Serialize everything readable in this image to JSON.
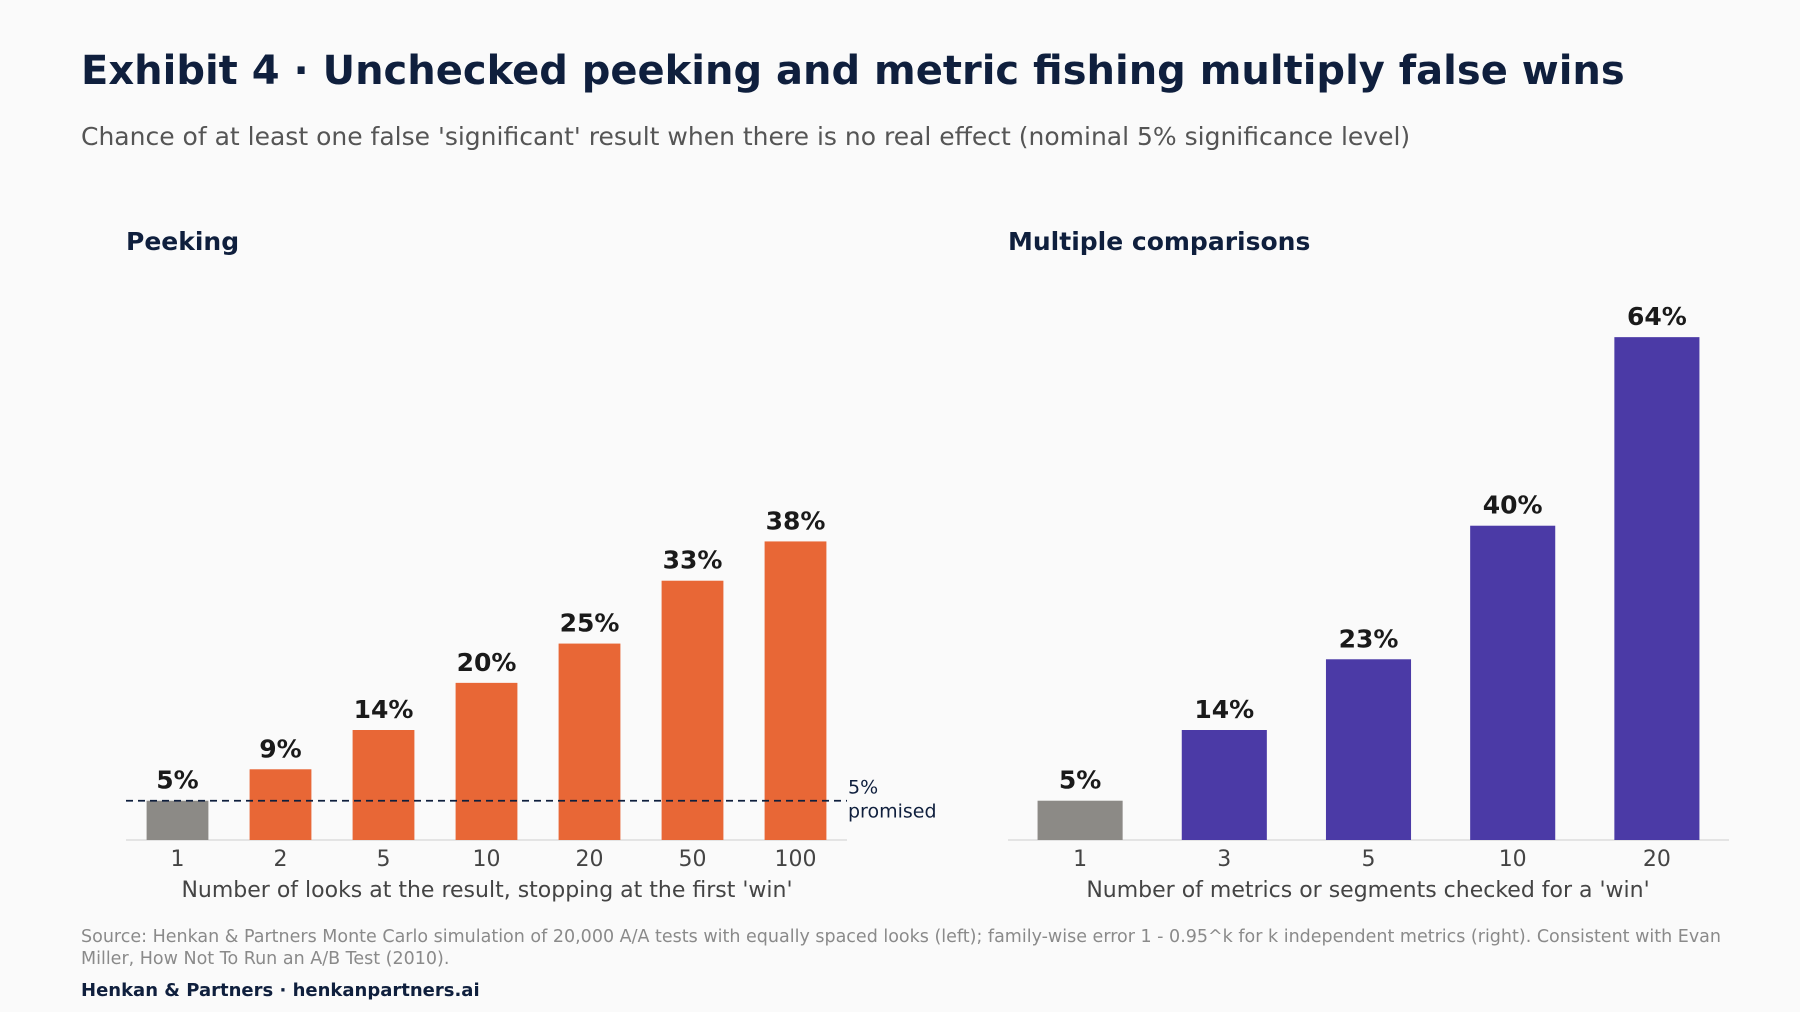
{
  "title": "Exhibit 4 · Unchecked peeking and metric fishing multiply false wins",
  "subtitle": "Chance of at least one false 'significant' result when there is no real effect (nominal 5% significance level)",
  "source": "Source: Henkan & Partners Monte Carlo simulation of 20,000 A/A tests with equally spaced looks (left); family-wise error 1 - 0.95^k for k independent metrics (right). Consistent with Evan Miller, How Not To Run an A/B Test (2010).",
  "footer": "Henkan & Partners · henkanpartners.ai",
  "colors": {
    "baseline": "#8c8a86",
    "peeking": "#e86736",
    "comparisons": "#4b3aa6",
    "reference_line": "#0f1f3d"
  },
  "chart_data": [
    {
      "type": "bar",
      "title": "Peeking",
      "xlabel": "Number of looks at the result, stopping at the first 'win'",
      "categories": [
        "1",
        "2",
        "5",
        "10",
        "20",
        "50",
        "100"
      ],
      "values": [
        5,
        9,
        14,
        20,
        25,
        33,
        38
      ],
      "value_labels": [
        "5%",
        "9%",
        "14%",
        "20%",
        "25%",
        "33%",
        "38%"
      ],
      "highlight_first_as_baseline": true,
      "reference_line": {
        "value": 5,
        "label_lines": [
          "5%",
          "promised"
        ]
      },
      "ylim": [
        0,
        70
      ]
    },
    {
      "type": "bar",
      "title": "Multiple comparisons",
      "xlabel": "Number of metrics or segments checked for a 'win'",
      "categories": [
        "1",
        "3",
        "5",
        "10",
        "20"
      ],
      "values": [
        5,
        14,
        23,
        40,
        64
      ],
      "value_labels": [
        "5%",
        "14%",
        "23%",
        "40%",
        "64%"
      ],
      "highlight_first_as_baseline": true,
      "ylim": [
        0,
        70
      ]
    }
  ]
}
